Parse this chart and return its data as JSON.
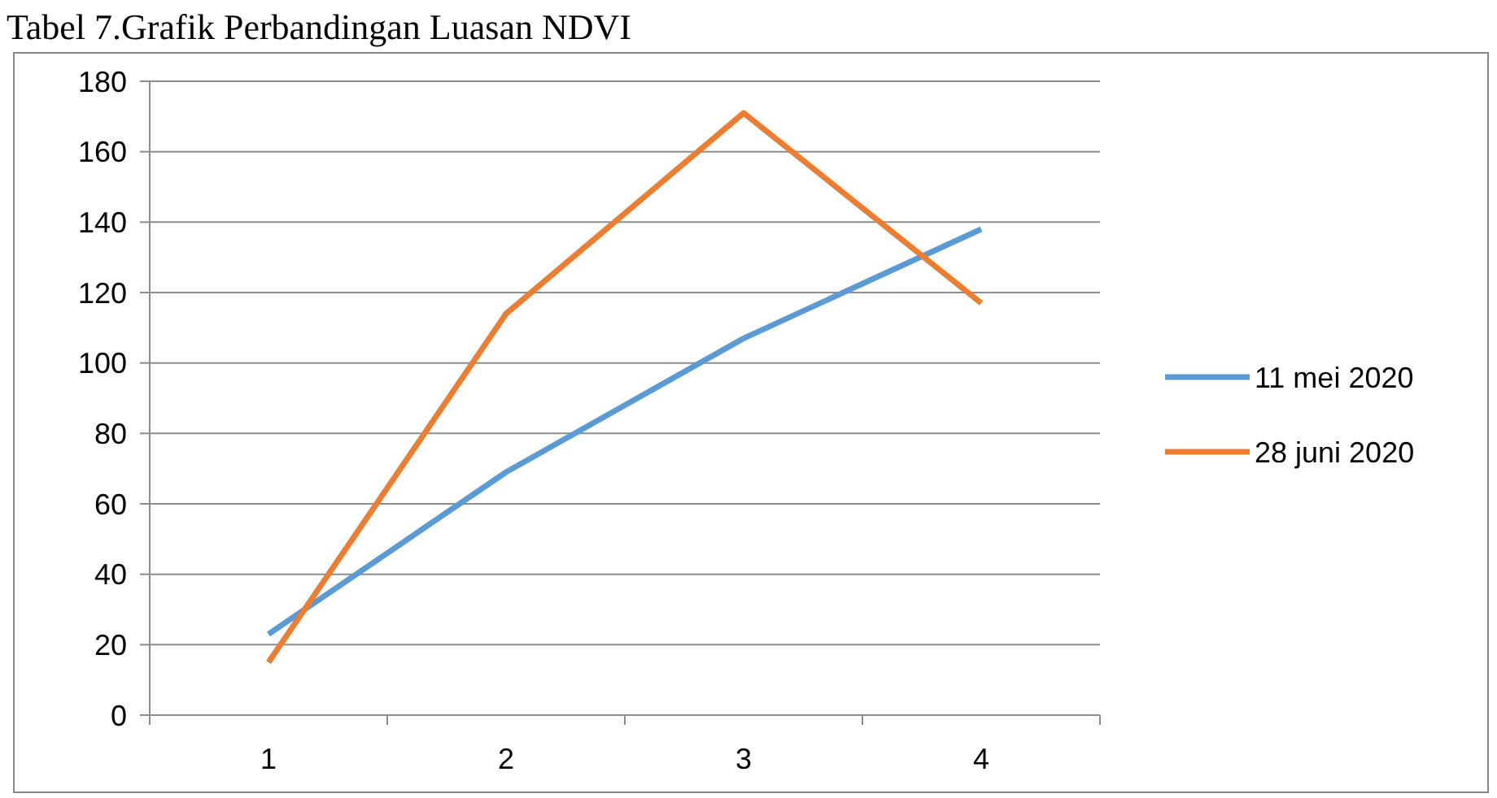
{
  "chart_data": {
    "type": "line",
    "title": "Tabel 7.Grafik Perbandingan Luasan NDVI",
    "categories": [
      "1",
      "2",
      "3",
      "4"
    ],
    "series": [
      {
        "name": "11 mei 2020",
        "color": "#5b9bd5",
        "values": [
          23,
          69,
          107,
          138
        ]
      },
      {
        "name": "28 juni 2020",
        "color": "#ed7d31",
        "values": [
          15,
          114,
          171,
          117
        ]
      }
    ],
    "ylim": [
      0,
      180
    ],
    "yticks": [
      0,
      20,
      40,
      60,
      80,
      100,
      120,
      140,
      160,
      180
    ],
    "grid": "y",
    "legend": "right",
    "marker": "none",
    "line_style": "solid"
  }
}
